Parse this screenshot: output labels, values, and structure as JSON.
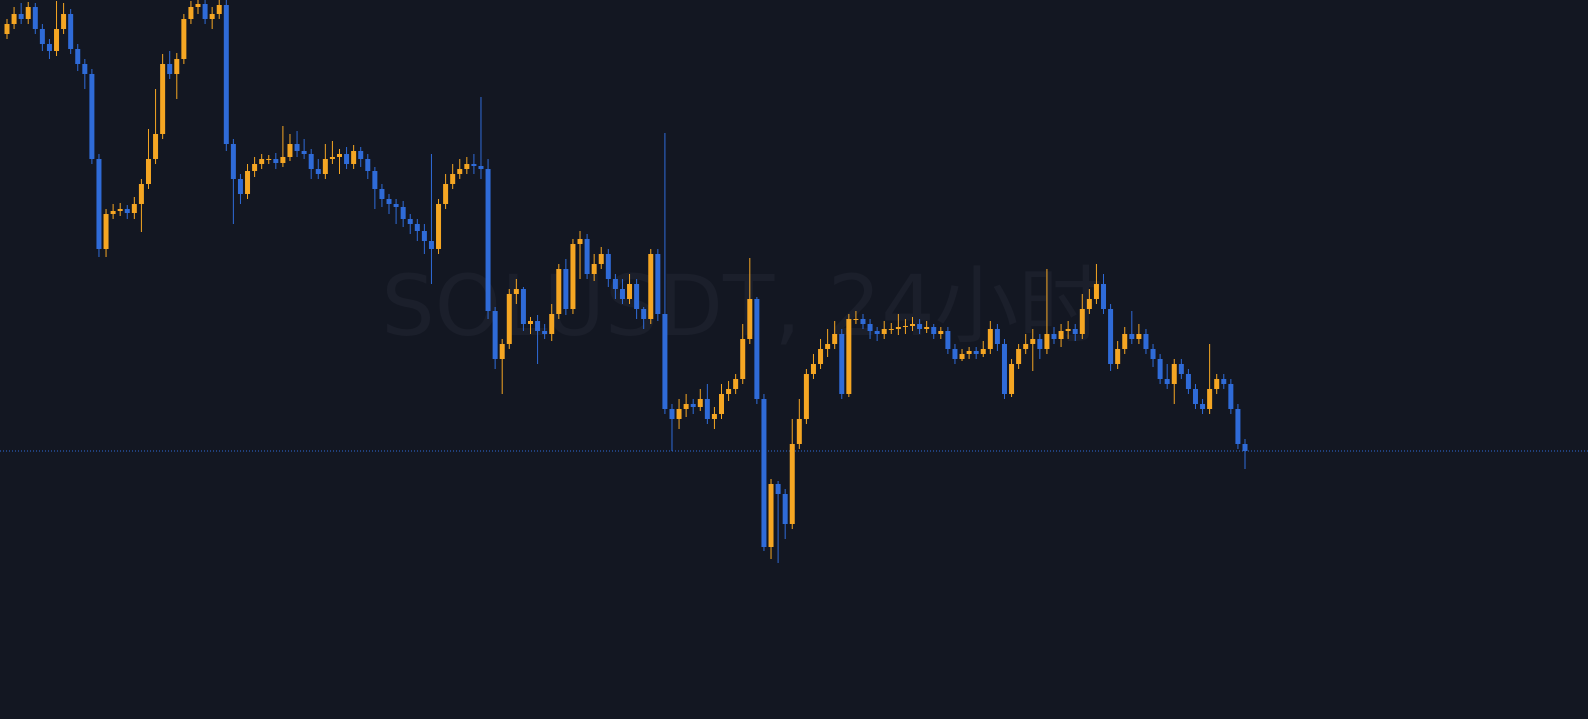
{
  "chart_data": {
    "type": "candlestick",
    "watermark": "SOLUSDT, 24小时",
    "up_color": "#f5a623",
    "down_color": "#2f6bd8",
    "ylim": [
      0,
      719
    ],
    "open": [
      685,
      695,
      705,
      700,
      712,
      690,
      675,
      668,
      690,
      705,
      670,
      655,
      645,
      560,
      470,
      505,
      508,
      510,
      506,
      515,
      535,
      560,
      585,
      655,
      645,
      660,
      700,
      712,
      715,
      700,
      705,
      714,
      575,
      540,
      525,
      548,
      555,
      560,
      560,
      556,
      562,
      575,
      568,
      565,
      550,
      545,
      560,
      562,
      565,
      555,
      568,
      560,
      548,
      530,
      520,
      515,
      512,
      500,
      495,
      488,
      478,
      470,
      515,
      535,
      545,
      550,
      555,
      553,
      550,
      408,
      360,
      375,
      425,
      430,
      395,
      398,
      388,
      385,
      405,
      450,
      410,
      475,
      480,
      445,
      455,
      465,
      440,
      430,
      420,
      435,
      410,
      400,
      465,
      405,
      310,
      300,
      310,
      315,
      312,
      320,
      300,
      305,
      325,
      330,
      340,
      380,
      420,
      320,
      172,
      235,
      225,
      195,
      275,
      300,
      345,
      355,
      370,
      375,
      385,
      325,
      400,
      400,
      395,
      388,
      385,
      390,
      390,
      392,
      393,
      395,
      390,
      392,
      385,
      388,
      370,
      360,
      365,
      368,
      365,
      370,
      390,
      375,
      325,
      355,
      370,
      375,
      380,
      370,
      385,
      380,
      388,
      390,
      385,
      410,
      420,
      435,
      410,
      355,
      370,
      385,
      380,
      385,
      370,
      360,
      340,
      335,
      355,
      345,
      330,
      315,
      310,
      330,
      340,
      335,
      310,
      275
    ],
    "high": [
      700,
      712,
      716,
      717,
      716,
      695,
      680,
      718,
      716,
      710,
      675,
      660,
      650,
      565,
      510,
      515,
      516,
      514,
      522,
      540,
      590,
      630,
      665,
      668,
      666,
      705,
      718,
      719,
      719,
      712,
      719,
      719,
      580,
      545,
      555,
      562,
      565,
      564,
      566,
      593,
      585,
      588,
      580,
      570,
      560,
      575,
      578,
      570,
      572,
      574,
      572,
      565,
      552,
      535,
      525,
      520,
      518,
      505,
      500,
      495,
      565,
      520,
      545,
      555,
      560,
      562,
      565,
      622,
      560,
      412,
      380,
      430,
      440,
      432,
      402,
      404,
      395,
      415,
      455,
      460,
      480,
      488,
      485,
      465,
      472,
      470,
      445,
      440,
      445,
      440,
      412,
      470,
      470,
      586,
      315,
      320,
      325,
      320,
      330,
      335,
      312,
      335,
      338,
      345,
      395,
      461,
      422,
      325,
      240,
      238,
      230,
      300,
      320,
      350,
      365,
      380,
      390,
      398,
      390,
      405,
      408,
      405,
      400,
      392,
      398,
      396,
      405,
      400,
      402,
      400,
      398,
      395,
      392,
      392,
      375,
      370,
      372,
      372,
      378,
      398,
      395,
      380,
      360,
      375,
      385,
      390,
      385,
      450,
      392,
      395,
      398,
      395,
      425,
      430,
      455,
      445,
      415,
      378,
      392,
      408,
      395,
      390,
      375,
      365,
      355,
      360,
      360,
      350,
      335,
      320,
      375,
      345,
      345,
      340,
      315,
      280
    ],
    "low": [
      680,
      690,
      695,
      695,
      685,
      668,
      660,
      663,
      685,
      665,
      648,
      630,
      555,
      462,
      462,
      500,
      503,
      500,
      500,
      487,
      530,
      555,
      580,
      640,
      620,
      655,
      695,
      705,
      695,
      690,
      700,
      568,
      495,
      515,
      520,
      542,
      550,
      555,
      550,
      552,
      558,
      562,
      560,
      540,
      540,
      540,
      555,
      545,
      550,
      550,
      552,
      540,
      510,
      512,
      505,
      495,
      492,
      485,
      478,
      465,
      435,
      465,
      510,
      530,
      540,
      545,
      545,
      540,
      400,
      350,
      325,
      370,
      415,
      388,
      385,
      355,
      380,
      378,
      400,
      404,
      405,
      440,
      440,
      438,
      450,
      432,
      420,
      415,
      415,
      400,
      390,
      395,
      398,
      305,
      268,
      290,
      302,
      305,
      308,
      295,
      290,
      300,
      318,
      325,
      335,
      375,
      315,
      168,
      160,
      156,
      180,
      190,
      270,
      295,
      340,
      350,
      362,
      370,
      320,
      322,
      395,
      390,
      380,
      378,
      380,
      385,
      384,
      385,
      388,
      385,
      386,
      380,
      380,
      365,
      355,
      358,
      360,
      360,
      362,
      365,
      368,
      320,
      322,
      350,
      365,
      348,
      360,
      365,
      375,
      372,
      380,
      378,
      380,
      405,
      415,
      405,
      348,
      350,
      365,
      375,
      375,
      365,
      352,
      335,
      330,
      315,
      340,
      325,
      310,
      305,
      305,
      325,
      330,
      305,
      270,
      250
    ],
    "close": [
      695,
      705,
      700,
      712,
      690,
      675,
      668,
      690,
      705,
      670,
      655,
      645,
      560,
      470,
      505,
      508,
      510,
      506,
      515,
      535,
      560,
      585,
      655,
      645,
      660,
      700,
      712,
      715,
      700,
      705,
      714,
      575,
      540,
      525,
      548,
      555,
      560,
      560,
      556,
      562,
      575,
      568,
      565,
      550,
      545,
      560,
      562,
      565,
      555,
      568,
      560,
      548,
      530,
      520,
      515,
      512,
      500,
      495,
      488,
      478,
      470,
      515,
      535,
      545,
      550,
      555,
      553,
      550,
      408,
      360,
      375,
      425,
      430,
      395,
      398,
      388,
      385,
      405,
      450,
      410,
      475,
      480,
      445,
      455,
      465,
      440,
      430,
      420,
      435,
      410,
      400,
      465,
      405,
      310,
      300,
      310,
      315,
      312,
      320,
      300,
      305,
      325,
      330,
      340,
      380,
      420,
      320,
      172,
      235,
      225,
      195,
      275,
      300,
      345,
      355,
      370,
      375,
      385,
      325,
      400,
      400,
      395,
      388,
      385,
      390,
      390,
      392,
      393,
      395,
      390,
      392,
      385,
      388,
      370,
      360,
      365,
      368,
      365,
      370,
      390,
      375,
      325,
      355,
      370,
      375,
      380,
      370,
      385,
      380,
      388,
      390,
      385,
      410,
      420,
      435,
      410,
      355,
      370,
      385,
      380,
      385,
      370,
      360,
      340,
      335,
      355,
      345,
      330,
      315,
      310,
      330,
      340,
      335,
      310,
      275,
      268
    ]
  }
}
